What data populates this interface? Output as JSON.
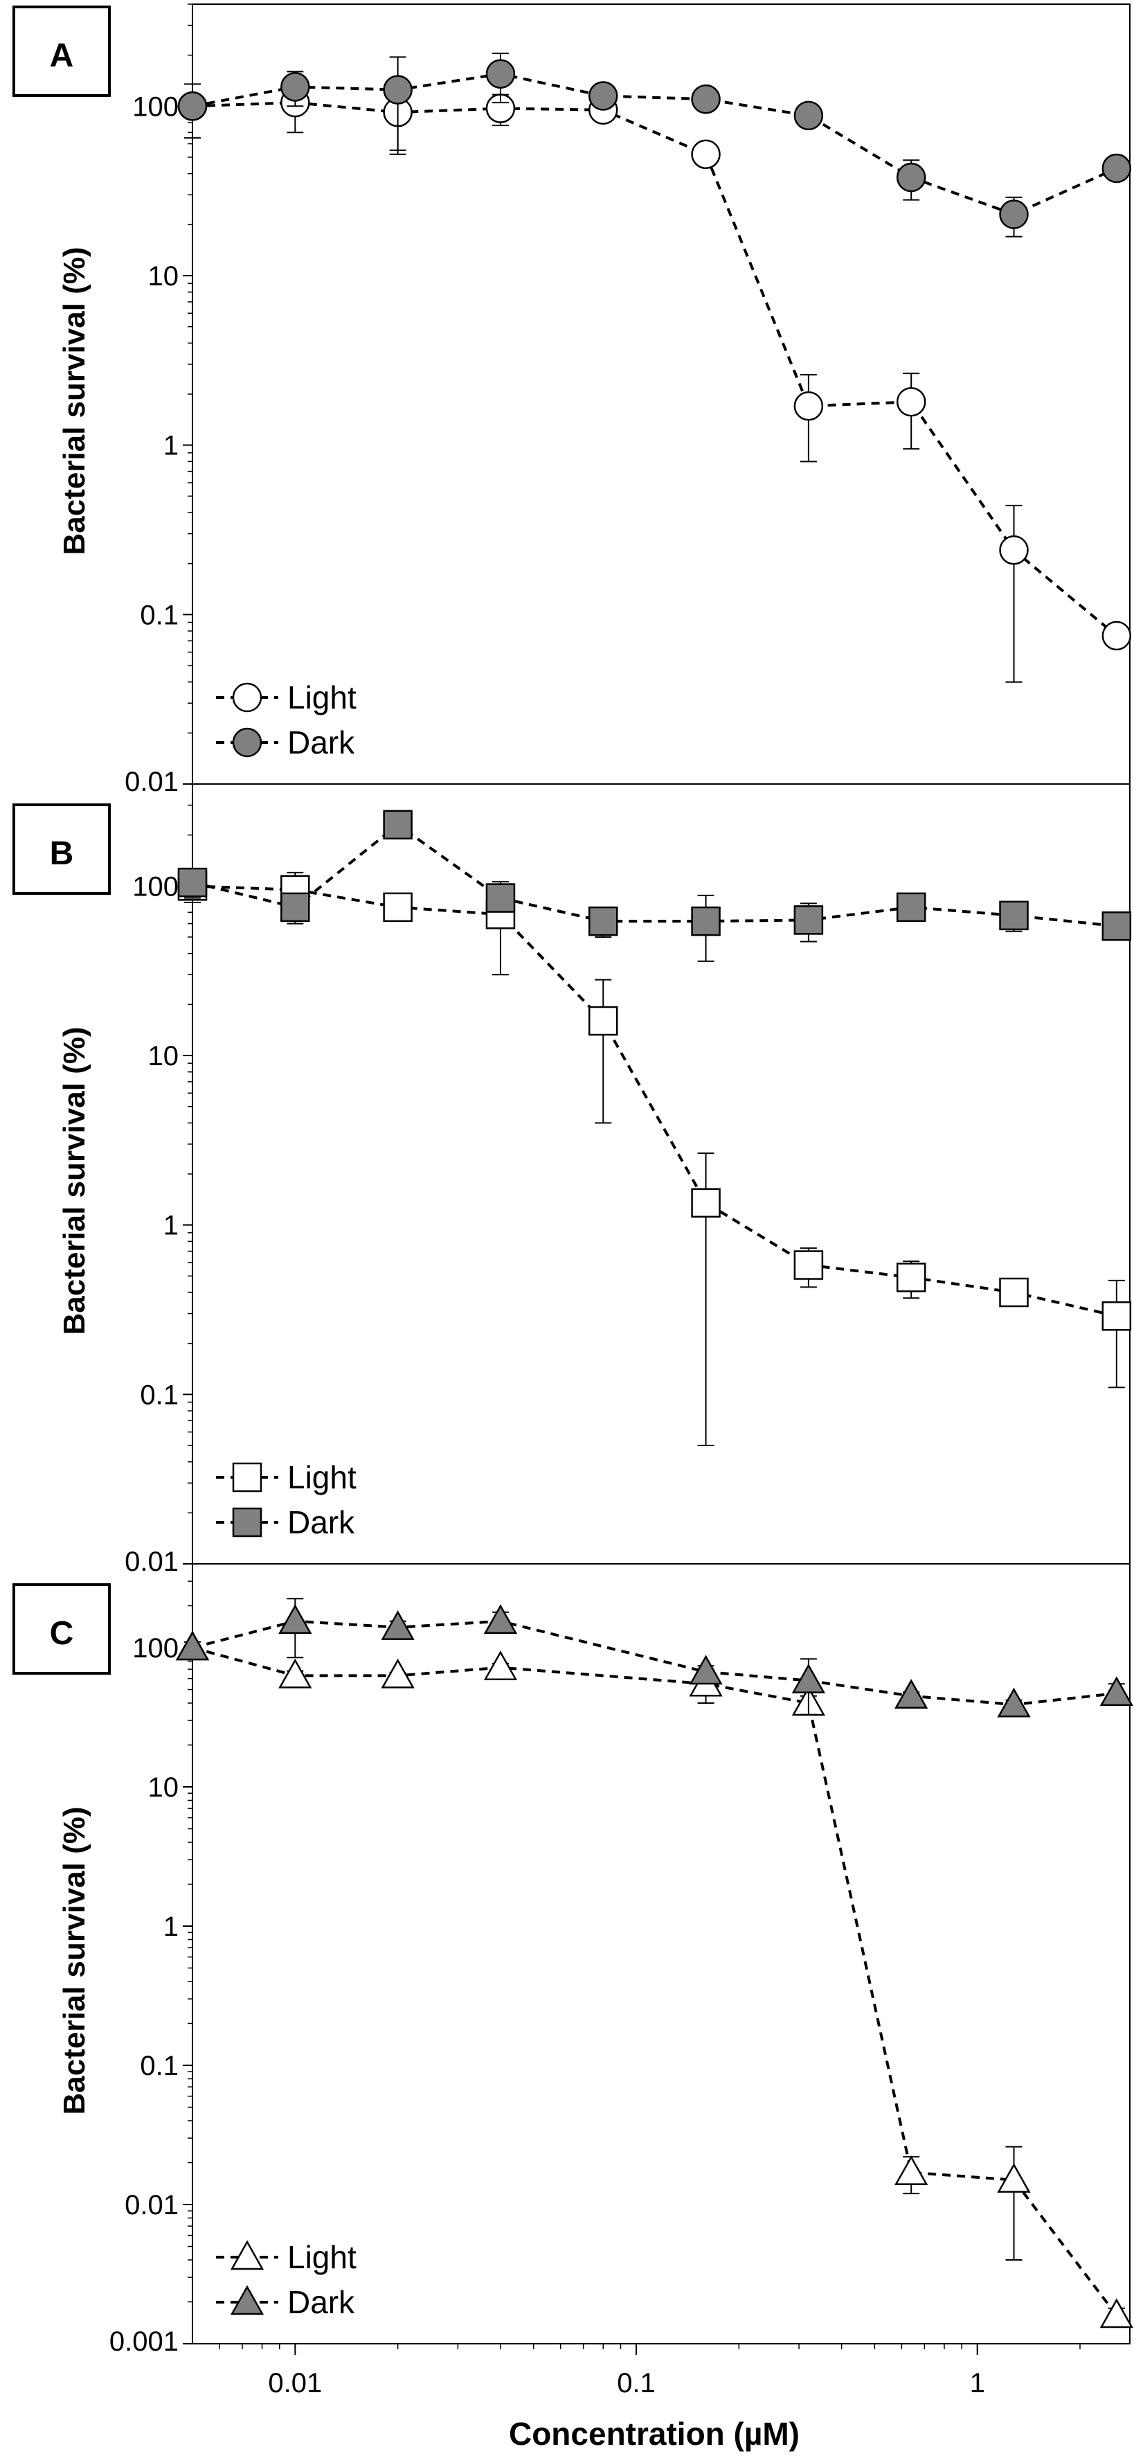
{
  "figure": {
    "xlabel": "Concentration (µM)",
    "xticks": [
      {
        "value": 0.01,
        "label": "0.01"
      },
      {
        "value": 0.1,
        "label": "0.1"
      },
      {
        "value": 1,
        "label": "1"
      }
    ],
    "colors": {
      "light_fill": "#ffffff",
      "dark_fill": "#808080",
      "stroke": "#000000"
    }
  },
  "chart_data": [
    {
      "type": "scatter",
      "panel_label": "A",
      "ylabel": "Bacterial survival (%)",
      "x_scale": "log",
      "y_scale": "log",
      "xlim": [
        0.005,
        2.8
      ],
      "ylim": [
        0.01,
        400
      ],
      "yticks": [
        {
          "value": 100,
          "label": "100"
        },
        {
          "value": 10,
          "label": "10"
        },
        {
          "value": 1,
          "label": "1"
        },
        {
          "value": 0.1,
          "label": "0.1"
        },
        {
          "value": 0.01,
          "label": "0.01"
        }
      ],
      "marker": "circle",
      "legend_position": "bottom-left",
      "x": [
        0.005,
        0.01,
        0.02,
        0.04,
        0.08,
        0.16,
        0.32,
        0.64,
        1.28,
        2.56
      ],
      "series": [
        {
          "name": "Light",
          "style": "light",
          "values": [
            100,
            105,
            92,
            97,
            95,
            52,
            1.7,
            1.8,
            0.24,
            0.075
          ],
          "errors": [
            35,
            35,
            40,
            20,
            8,
            4,
            0.9,
            0.85,
            0.2,
            0.006
          ]
        },
        {
          "name": "Dark",
          "style": "dark",
          "values": [
            100,
            130,
            125,
            155,
            115,
            110,
            88,
            38,
            23,
            43
          ],
          "errors": [
            0,
            30,
            70,
            50,
            12,
            8,
            5,
            10,
            6,
            3
          ]
        }
      ]
    },
    {
      "type": "scatter",
      "panel_label": "B",
      "ylabel": "Bacterial survival (%)",
      "x_scale": "log",
      "y_scale": "log",
      "xlim": [
        0.005,
        2.8
      ],
      "ylim": [
        0.01,
        400
      ],
      "yticks": [
        {
          "value": 100,
          "label": "100"
        },
        {
          "value": 10,
          "label": "10"
        },
        {
          "value": 1,
          "label": "1"
        },
        {
          "value": 0.1,
          "label": "0.1"
        },
        {
          "value": 0.01,
          "label": "0.01"
        }
      ],
      "marker": "square",
      "legend_position": "bottom-left",
      "x": [
        0.005,
        0.01,
        0.02,
        0.04,
        0.08,
        0.16,
        0.32,
        0.64,
        1.28,
        2.56
      ],
      "series": [
        {
          "name": "Light",
          "style": "light",
          "values": [
            100,
            95,
            75,
            68,
            16,
            1.35,
            0.58,
            0.49,
            0.4,
            0.29
          ],
          "errors": [
            20,
            25,
            5,
            38,
            12,
            1.3,
            0.15,
            0.12,
            0.04,
            0.18
          ]
        },
        {
          "name": "Dark",
          "style": "dark",
          "values": [
            105,
            75,
            230,
            85,
            62,
            62,
            63,
            75,
            67,
            58
          ],
          "errors": [
            20,
            15,
            0,
            10,
            12,
            26,
            16,
            12,
            13,
            3
          ]
        }
      ]
    },
    {
      "type": "scatter",
      "panel_label": "C",
      "ylabel": "Bacterial survival (%)",
      "x_scale": "log",
      "y_scale": "log",
      "xlim": [
        0.005,
        2.8
      ],
      "ylim": [
        0.001,
        400
      ],
      "yticks": [
        {
          "value": 100,
          "label": "100"
        },
        {
          "value": 10,
          "label": "10"
        },
        {
          "value": 1,
          "label": "1"
        },
        {
          "value": 0.1,
          "label": "0.1"
        },
        {
          "value": 0.01,
          "label": "0.01"
        },
        {
          "value": 0.001,
          "label": "0.001"
        }
      ],
      "marker": "triangle",
      "legend_position": "bottom-left",
      "x": [
        0.005,
        0.01,
        0.02,
        0.04,
        0.16,
        0.32,
        0.64,
        1.28,
        2.56
      ],
      "series": [
        {
          "name": "Light",
          "style": "light",
          "values": [
            100,
            63,
            63,
            72,
            55,
            40,
            0.017,
            0.015,
            0.0016
          ],
          "errors": [
            10,
            5,
            3,
            5,
            15,
            5,
            0.005,
            0.011,
            0.0002
          ]
        },
        {
          "name": "Dark",
          "style": "dark",
          "values": [
            100,
            155,
            140,
            155,
            67,
            58,
            45,
            39,
            47
          ],
          "errors": [
            0,
            70,
            15,
            25,
            7,
            25,
            3,
            3,
            8
          ]
        }
      ]
    }
  ]
}
